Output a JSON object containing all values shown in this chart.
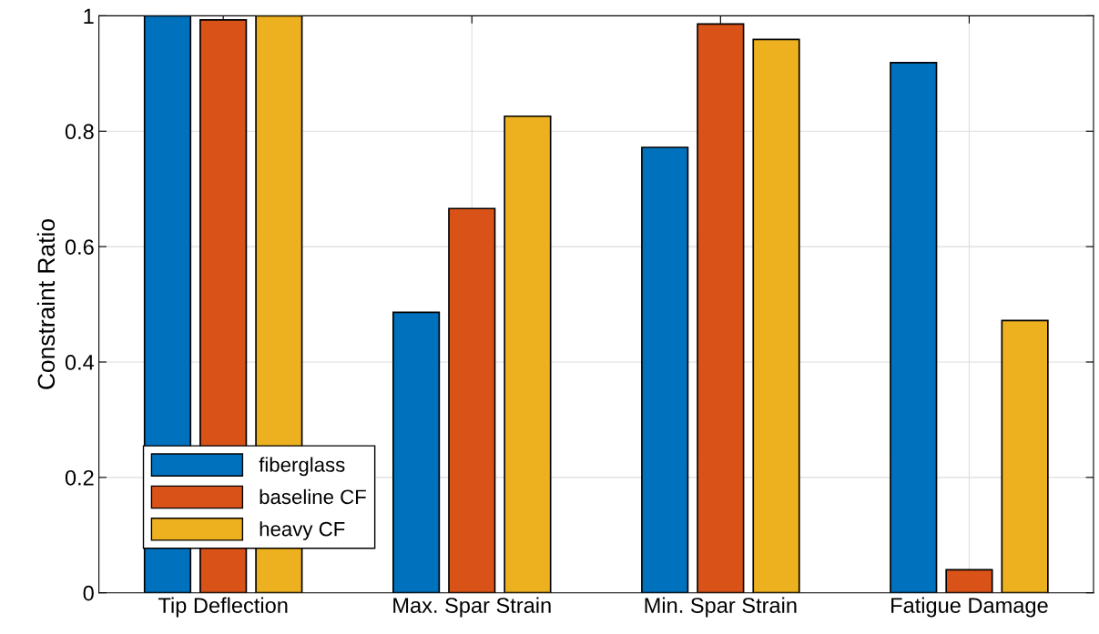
{
  "chart_data": {
    "type": "bar",
    "ylabel": "Constraint Ratio",
    "categories": [
      "Tip Deflection",
      "Max. Spar Strain",
      "Min. Spar Strain",
      "Fatigue Damage"
    ],
    "series": [
      {
        "name": "fiberglass",
        "color": "#0072bd",
        "values": [
          1.0,
          0.486,
          0.772,
          0.919
        ]
      },
      {
        "name": "baseline CF",
        "color": "#d95319",
        "values": [
          0.993,
          0.666,
          0.986,
          0.04
        ]
      },
      {
        "name": "heavy CF",
        "color": "#edb120",
        "values": [
          1.0,
          0.826,
          0.959,
          0.472
        ]
      }
    ],
    "ylim": [
      0,
      1
    ],
    "yticks": [
      0,
      0.2,
      0.4,
      0.6,
      0.8,
      1
    ],
    "grid": true,
    "legend": "bottom left"
  }
}
